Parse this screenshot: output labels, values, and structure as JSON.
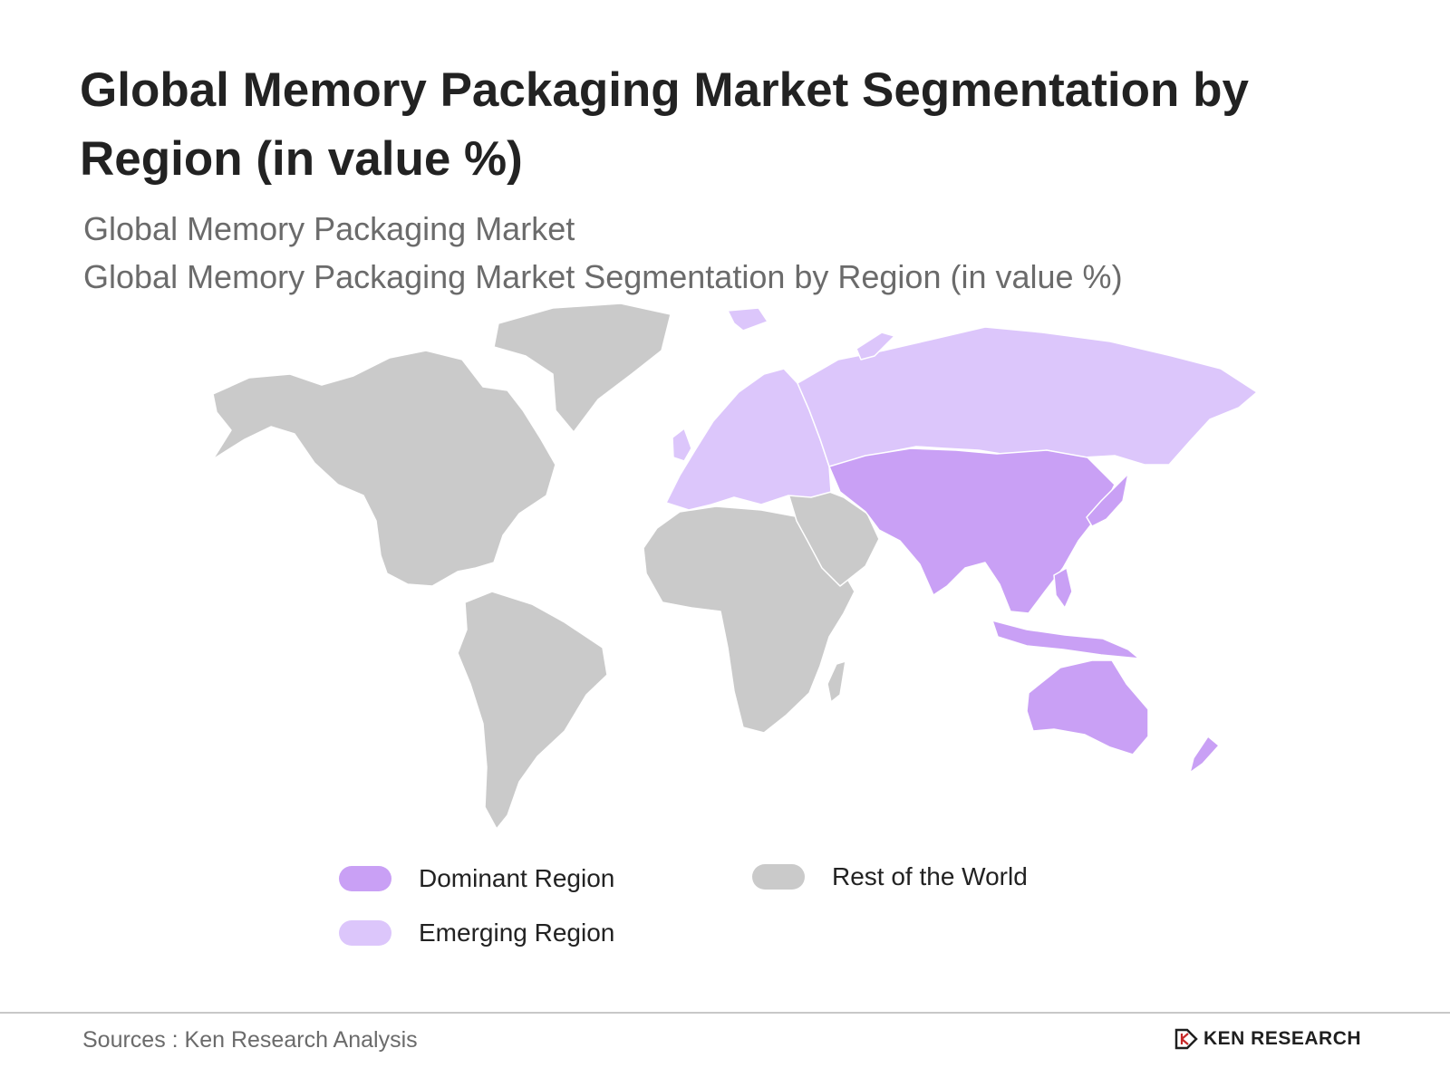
{
  "header": {
    "title": "Global Memory Packaging Market Segmentation by Region (in value %)",
    "subtitle_1": "Global Memory Packaging Market",
    "subtitle_2": "Global Memory Packaging Market Segmentation by Region (in value %)"
  },
  "colors": {
    "dominant": "#c9a0f5",
    "emerging": "#dcc6fb",
    "rest": "#cacaca",
    "border": "#ffffff"
  },
  "map": {
    "regions": [
      {
        "name": "North America",
        "category": "rest"
      },
      {
        "name": "South America",
        "category": "rest"
      },
      {
        "name": "Greenland",
        "category": "rest"
      },
      {
        "name": "Africa",
        "category": "rest"
      },
      {
        "name": "Middle East",
        "category": "rest"
      },
      {
        "name": "Europe",
        "category": "emerging"
      },
      {
        "name": "Russia",
        "category": "emerging"
      },
      {
        "name": "Asia Pacific",
        "category": "dominant"
      },
      {
        "name": "Australia",
        "category": "dominant"
      }
    ]
  },
  "legend": {
    "items": [
      {
        "label": "Dominant Region",
        "category": "dominant"
      },
      {
        "label": "Emerging Region",
        "category": "emerging"
      },
      {
        "label": "Rest of the World",
        "category": "rest"
      }
    ]
  },
  "footer": {
    "sources": "Sources : Ken Research Analysis",
    "logo_text": "KEN RESEARCH",
    "logo_mark": "K"
  }
}
